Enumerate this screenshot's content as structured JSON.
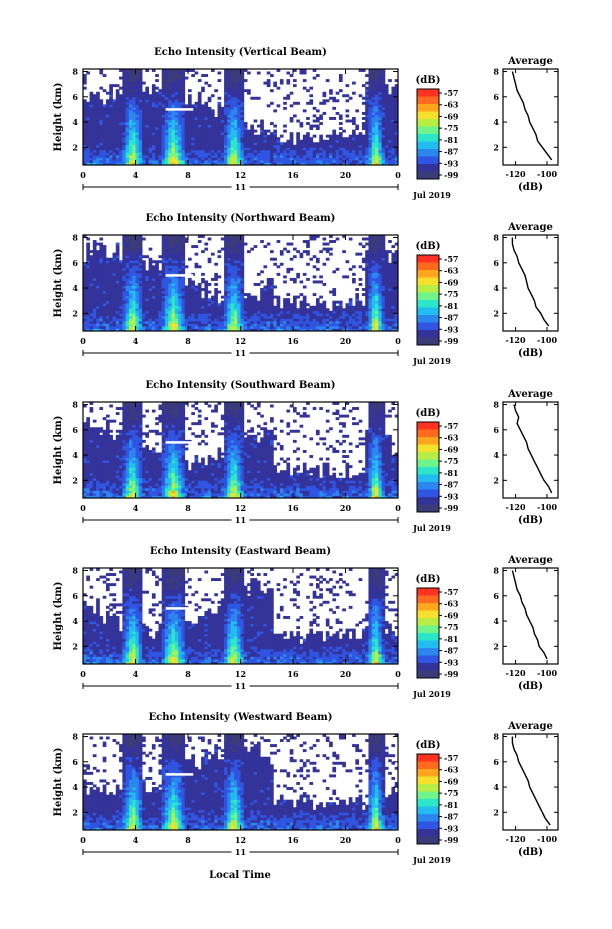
{
  "figure": {
    "xlabel": "Local Time",
    "date_label": "Jul 2019",
    "day_label": "11"
  },
  "colorbar": {
    "unit": "(dB)",
    "ticks": [
      "-57",
      "-63",
      "-69",
      "-75",
      "-81",
      "-87",
      "-93",
      "-99"
    ],
    "colors": [
      "#ff3322",
      "#ff6a1f",
      "#ffa51e",
      "#f5e12b",
      "#b8ee44",
      "#6ef48a",
      "#2be7c7",
      "#22bdf0",
      "#2b87ee",
      "#2f55e2",
      "#33339a",
      "#3b3b7a"
    ]
  },
  "chart_data": [
    {
      "type": "heatmap",
      "title": "Echo Intensity (Vertical Beam)",
      "ylabel": "Height (km)",
      "x_ticks": [
        "0",
        "4",
        "8",
        "12",
        "16",
        "20",
        "0"
      ],
      "y_ticks": [
        "2",
        "4",
        "6",
        "8"
      ],
      "xlim": [
        0,
        24
      ],
      "ylim": [
        0.6,
        8.2
      ],
      "profile": {
        "title": "Average",
        "xlabel": "(dB)",
        "x_ticks": [
          "-120",
          "-100"
        ],
        "y_ticks": [
          "2",
          "4",
          "6",
          "8"
        ],
        "xlim": [
          -128,
          -93
        ],
        "ylim": [
          0.6,
          8.2
        ],
        "heights": [
          1.0,
          1.5,
          2.0,
          2.5,
          3.0,
          3.5,
          4.0,
          4.5,
          5.0,
          5.5,
          6.0,
          6.5,
          7.0,
          7.5,
          8.0
        ],
        "values": [
          -97,
          -100,
          -103,
          -106,
          -107,
          -109,
          -111,
          -112,
          -114,
          -115,
          -117,
          -119,
          -120,
          -121,
          -122
        ]
      }
    },
    {
      "type": "heatmap",
      "title": "Echo Intensity (Northward Beam)",
      "ylabel": "Height (km)",
      "x_ticks": [
        "0",
        "4",
        "8",
        "12",
        "16",
        "20",
        "0"
      ],
      "y_ticks": [
        "2",
        "4",
        "6",
        "8"
      ],
      "xlim": [
        0,
        24
      ],
      "ylim": [
        0.6,
        8.2
      ],
      "profile": {
        "title": "Average",
        "xlabel": "(dB)",
        "x_ticks": [
          "-120",
          "-100"
        ],
        "y_ticks": [
          "2",
          "4",
          "6",
          "8"
        ],
        "xlim": [
          -128,
          -93
        ],
        "ylim": [
          0.6,
          8.2
        ],
        "heights": [
          1.0,
          1.5,
          2.0,
          2.5,
          3.0,
          3.5,
          4.0,
          4.5,
          5.0,
          5.5,
          6.0,
          6.5,
          7.0,
          7.5,
          8.0
        ],
        "values": [
          -99,
          -102,
          -104,
          -107,
          -108,
          -110,
          -112,
          -113,
          -114,
          -116,
          -118,
          -119,
          -121,
          -122,
          -122
        ]
      }
    },
    {
      "type": "heatmap",
      "title": "Echo Intensity (Southward Beam)",
      "ylabel": "Height (km)",
      "x_ticks": [
        "0",
        "4",
        "8",
        "12",
        "16",
        "20",
        "0"
      ],
      "y_ticks": [
        "2",
        "4",
        "6",
        "8"
      ],
      "xlim": [
        0,
        24
      ],
      "ylim": [
        0.6,
        8.2
      ],
      "profile": {
        "title": "Average",
        "xlabel": "(dB)",
        "x_ticks": [
          "-120",
          "-100"
        ],
        "y_ticks": [
          "2",
          "4",
          "6",
          "8"
        ],
        "xlim": [
          -128,
          -93
        ],
        "ylim": [
          0.6,
          8.2
        ],
        "heights": [
          1.0,
          1.5,
          2.0,
          2.5,
          3.0,
          3.5,
          4.0,
          4.5,
          5.0,
          5.5,
          6.0,
          6.5,
          7.0,
          7.5,
          8.0
        ],
        "values": [
          -97,
          -99,
          -102,
          -104,
          -106,
          -108,
          -110,
          -112,
          -113,
          -115,
          -117,
          -119,
          -118,
          -120,
          -121
        ]
      }
    },
    {
      "type": "heatmap",
      "title": "Echo Intensity (Eastward Beam)",
      "ylabel": "Height (km)",
      "x_ticks": [
        "0",
        "4",
        "8",
        "12",
        "16",
        "20",
        "0"
      ],
      "y_ticks": [
        "2",
        "4",
        "6",
        "8"
      ],
      "xlim": [
        0,
        24
      ],
      "ylim": [
        0.6,
        8.2
      ],
      "profile": {
        "title": "Average",
        "xlabel": "(dB)",
        "x_ticks": [
          "-120",
          "-100"
        ],
        "y_ticks": [
          "2",
          "4",
          "6",
          "8"
        ],
        "xlim": [
          -128,
          -93
        ],
        "ylim": [
          0.6,
          8.2
        ],
        "heights": [
          1.0,
          1.5,
          2.0,
          2.5,
          3.0,
          3.5,
          4.0,
          4.5,
          5.0,
          5.5,
          6.0,
          6.5,
          7.0,
          7.5,
          8.0
        ],
        "values": [
          -100,
          -102,
          -105,
          -106,
          -108,
          -109,
          -111,
          -113,
          -114,
          -116,
          -117,
          -119,
          -120,
          -121,
          -122
        ]
      }
    },
    {
      "type": "heatmap",
      "title": "Echo Intensity (Westward Beam)",
      "ylabel": "Height (km)",
      "x_ticks": [
        "0",
        "4",
        "8",
        "12",
        "16",
        "20",
        "0"
      ],
      "y_ticks": [
        "2",
        "4",
        "6",
        "8"
      ],
      "xlim": [
        0,
        24
      ],
      "ylim": [
        0.6,
        8.2
      ],
      "profile": {
        "title": "Average",
        "xlabel": "(dB)",
        "x_ticks": [
          "-120",
          "-100"
        ],
        "y_ticks": [
          "2",
          "4",
          "6",
          "8"
        ],
        "xlim": [
          -128,
          -93
        ],
        "ylim": [
          0.6,
          8.2
        ],
        "heights": [
          1.0,
          1.5,
          2.0,
          2.5,
          3.0,
          3.5,
          4.0,
          4.5,
          5.0,
          5.5,
          6.0,
          6.5,
          7.0,
          7.5,
          8.0
        ],
        "values": [
          -98,
          -101,
          -103,
          -105,
          -107,
          -109,
          -111,
          -112,
          -114,
          -116,
          -118,
          -119,
          -121,
          -122,
          -122
        ]
      }
    }
  ]
}
